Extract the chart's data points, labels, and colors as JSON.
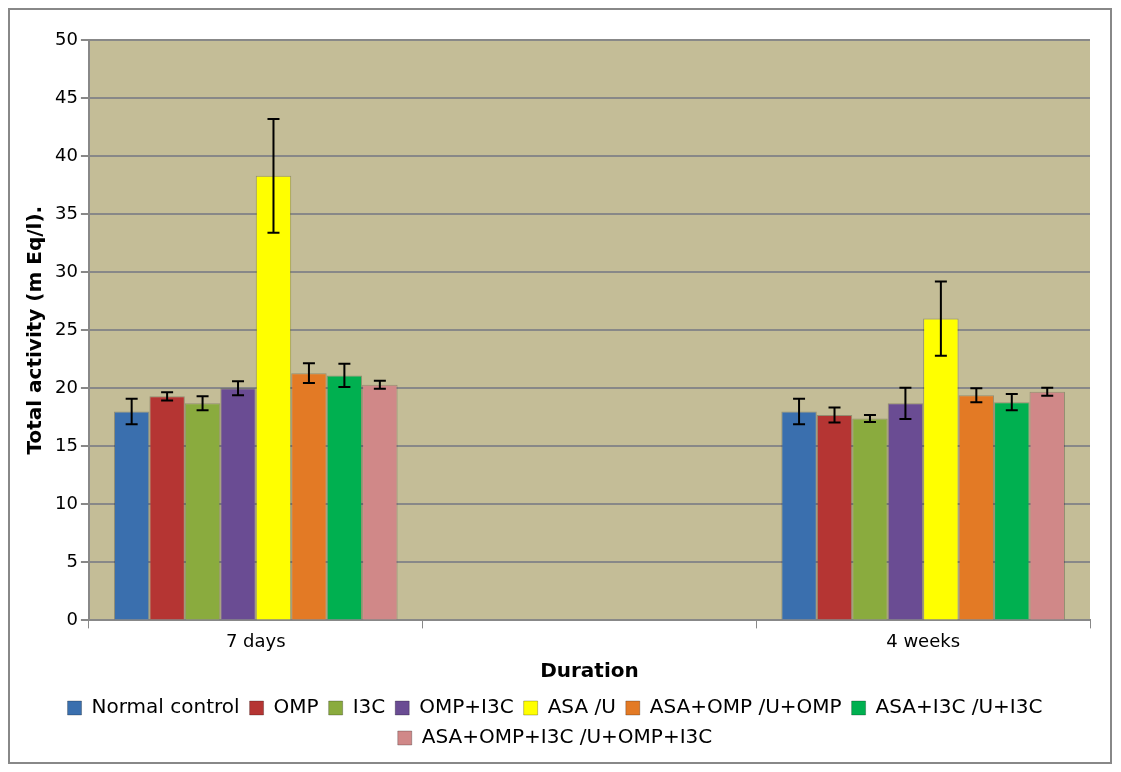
{
  "chart_data": {
    "type": "bar",
    "xlabel": "Duration",
    "ylabel": "Total activity (m Eq/l).",
    "categories": [
      "7 days",
      null,
      "4 weeks"
    ],
    "series": [
      {
        "name": "Normal control",
        "color": "#3a6fae",
        "values": [
          18.0,
          null,
          18.0
        ],
        "errors": [
          1.1,
          null,
          1.1
        ]
      },
      {
        "name": "OMP",
        "color": "#b53533",
        "values": [
          19.3,
          null,
          17.7
        ],
        "errors": [
          0.35,
          null,
          0.65
        ]
      },
      {
        "name": "I3C",
        "color": "#8aab3e",
        "values": [
          18.7,
          null,
          17.4
        ],
        "errors": [
          0.6,
          null,
          0.3
        ]
      },
      {
        "name": "OMP+I3C",
        "color": "#6a4c93",
        "values": [
          20.0,
          null,
          18.7
        ],
        "errors": [
          0.6,
          null,
          1.35
        ]
      },
      {
        "name": "ASA /U",
        "color": "#ffff00",
        "values": [
          38.3,
          null,
          26.0
        ],
        "errors": [
          4.9,
          null,
          3.2
        ]
      },
      {
        "name": "ASA+OMP /U+OMP",
        "color": "#e37a25",
        "values": [
          21.3,
          null,
          19.4
        ],
        "errors": [
          0.85,
          null,
          0.6
        ]
      },
      {
        "name": "ASA+I3C /U+I3C",
        "color": "#00b050",
        "values": [
          21.1,
          null,
          18.8
        ],
        "errors": [
          1.0,
          null,
          0.7
        ]
      },
      {
        "name": "ASA+OMP+I3C /U+OMP+I3C",
        "color": "#d08888",
        "values": [
          20.3,
          null,
          19.7
        ],
        "errors": [
          0.35,
          null,
          0.35
        ]
      }
    ],
    "ylim": [
      0,
      50
    ],
    "yticks": [
      0,
      5,
      10,
      15,
      20,
      25,
      30,
      35,
      40,
      45,
      50
    ],
    "grid": "y",
    "legend": "bottom"
  }
}
